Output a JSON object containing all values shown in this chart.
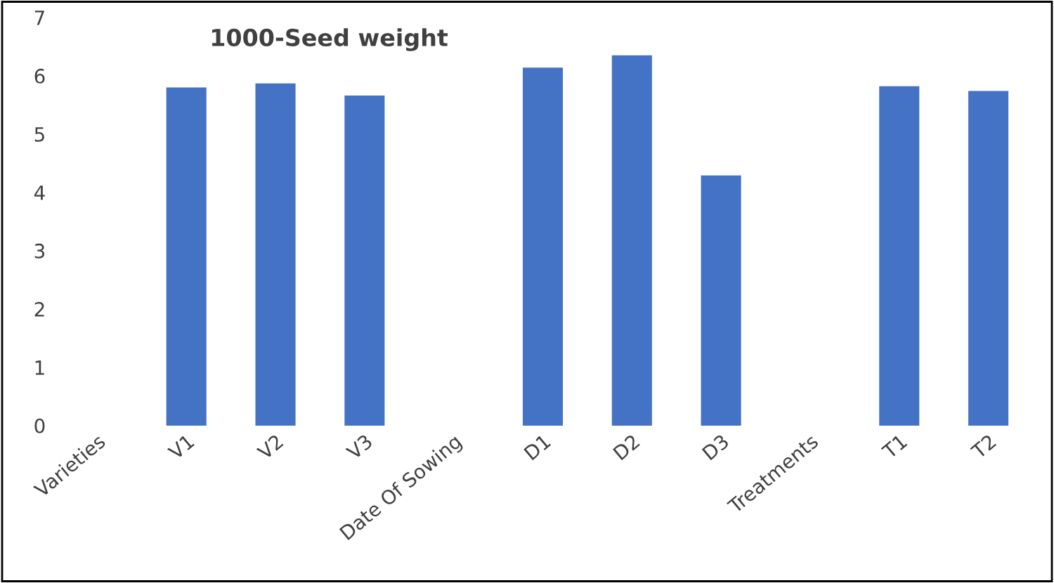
{
  "chart_data": {
    "type": "bar",
    "title": "1000-Seed weight",
    "categories": [
      "Varieties",
      "V1",
      "V2",
      "V3",
      "Date Of Sowing",
      "D1",
      "D2",
      "D3",
      "Treatments",
      "T1",
      "T2"
    ],
    "values": [
      null,
      5.8,
      5.87,
      5.66,
      null,
      6.14,
      6.35,
      4.29,
      null,
      5.82,
      5.74
    ],
    "color": "#4472c4",
    "ylim": [
      0,
      7
    ],
    "yticks": [
      0,
      1,
      2,
      3,
      4,
      5,
      6,
      7
    ],
    "grid": false,
    "legend": false
  }
}
